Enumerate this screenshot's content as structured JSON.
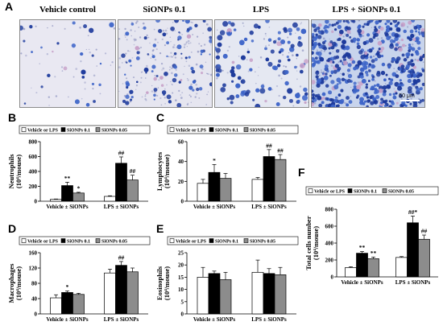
{
  "figure": {
    "panel_a_letter": "A",
    "micro_titles": [
      "Vehicle control",
      "SiONPs 0.1",
      "LPS",
      "LPS + SiONPs 0.1"
    ],
    "scale_bar": "50 μm",
    "colors": {
      "stain_bg_light": "#e9e8f2",
      "stain_bg_dense": "#c8d4ec",
      "cell_dark": "#1d3a9c",
      "cell_mid": "#3d64c8",
      "cell_pink": "#c7a1c8"
    }
  },
  "chart_data": [
    {
      "type": "bar",
      "panel": "B",
      "ylabel": "Neutrophils (10⁴/mouse)",
      "ylabel_main": "Neutrophils",
      "ylabel_unit": "(10⁴/mouse)",
      "categories": [
        "Vehicle ± SiONPs",
        "LPS ± SiONPs"
      ],
      "series": [
        {
          "name": "Vehicle or LPS",
          "values": [
            25,
            65
          ],
          "errors": [
            5,
            8
          ]
        },
        {
          "name": "SiONPs 0.1",
          "values": [
            210,
            510
          ],
          "errors": [
            45,
            85
          ]
        },
        {
          "name": "SiONPs 0.05",
          "values": [
            110,
            285
          ],
          "errors": [
            10,
            65
          ]
        }
      ],
      "ylim": [
        0,
        800
      ],
      "yticks": [
        0,
        200,
        400,
        600,
        800
      ],
      "annotations": [
        [
          "",
          "**",
          "*"
        ],
        [
          "",
          "##",
          "##"
        ]
      ],
      "legend": "top"
    },
    {
      "type": "bar",
      "panel": "C",
      "ylabel": "Lymphocytes (10⁴/mouse)",
      "ylabel_main": "Lymphocytes",
      "ylabel_unit": "(10⁴/mouse)",
      "categories": [
        "Vehicle ± SiONPs",
        "LPS ± SiONPs"
      ],
      "series": [
        {
          "name": "Vehicle or LPS",
          "values": [
            18,
            22
          ],
          "errors": [
            4,
            2
          ]
        },
        {
          "name": "SiONPs 0.1",
          "values": [
            29,
            45
          ],
          "errors": [
            8,
            7
          ]
        },
        {
          "name": "SiONPs 0.05",
          "values": [
            23,
            42
          ],
          "errors": [
            5,
            5
          ]
        }
      ],
      "ylim": [
        0,
        60
      ],
      "yticks": [
        0,
        20,
        40,
        60
      ],
      "annotations": [
        [
          "",
          "*",
          ""
        ],
        [
          "",
          "##",
          "##"
        ]
      ],
      "legend": "top"
    },
    {
      "type": "bar",
      "panel": "D",
      "ylabel": "Macrophages (10⁴/mouse)",
      "ylabel_main": "Macrophages",
      "ylabel_unit": "(10⁴/mouse)",
      "categories": [
        "Vehicle ± SiONPs",
        "LPS ± SiONPs"
      ],
      "series": [
        {
          "name": "Vehicle or LPS",
          "values": [
            42,
            107
          ],
          "errors": [
            8,
            10
          ]
        },
        {
          "name": "SiONPs 0.1",
          "values": [
            56,
            127
          ],
          "errors": [
            4,
            10
          ]
        },
        {
          "name": "SiONPs 0.05",
          "values": [
            51,
            110
          ],
          "errors": [
            3,
            10
          ]
        }
      ],
      "ylim": [
        0,
        160
      ],
      "yticks": [
        0,
        40,
        80,
        120,
        160
      ],
      "annotations": [
        [
          "",
          "*",
          ""
        ],
        [
          "",
          "##",
          ""
        ]
      ],
      "legend": "top"
    },
    {
      "type": "bar",
      "panel": "E",
      "ylabel": "Eosinophils (10⁴/mouse)",
      "ylabel_main": "Eosinophils",
      "ylabel_unit": "(10⁴/mouse)",
      "categories": [
        "Vehicle ± SiONPs",
        "LPS ± SiONPs"
      ],
      "series": [
        {
          "name": "Vehicle or LPS",
          "values": [
            15,
            17
          ],
          "errors": [
            4,
            5
          ]
        },
        {
          "name": "SiONPs 0.1",
          "values": [
            16.5,
            16.5
          ],
          "errors": [
            1,
            2
          ]
        },
        {
          "name": "SiONPs 0.05",
          "values": [
            14,
            16
          ],
          "errors": [
            3,
            3
          ]
        }
      ],
      "ylim": [
        0,
        25
      ],
      "yticks": [
        0,
        5,
        10,
        15,
        20,
        25
      ],
      "annotations": [
        [
          "",
          "",
          ""
        ],
        [
          "",
          "",
          ""
        ]
      ],
      "legend": "top"
    },
    {
      "type": "bar",
      "panel": "F",
      "ylabel": "Total cells number (10⁴/mouse)",
      "ylabel_main": "Total cells number",
      "ylabel_unit": "(10⁴/mouse)",
      "categories": [
        "Vehicle ± SiONPs",
        "LPS ± SiONPs"
      ],
      "series": [
        {
          "name": "Vehicle or LPS",
          "values": [
            110,
            230
          ],
          "errors": [
            10,
            10
          ]
        },
        {
          "name": "SiONPs 0.1",
          "values": [
            280,
            640
          ],
          "errors": [
            20,
            80
          ]
        },
        {
          "name": "SiONPs 0.05",
          "values": [
            215,
            445
          ],
          "errors": [
            20,
            50
          ]
        }
      ],
      "ylim": [
        0,
        800
      ],
      "yticks": [
        0,
        200,
        400,
        600,
        800
      ],
      "annotations": [
        [
          "",
          "**",
          "**"
        ],
        [
          "",
          "##*",
          "##"
        ]
      ],
      "legend": "top"
    }
  ]
}
